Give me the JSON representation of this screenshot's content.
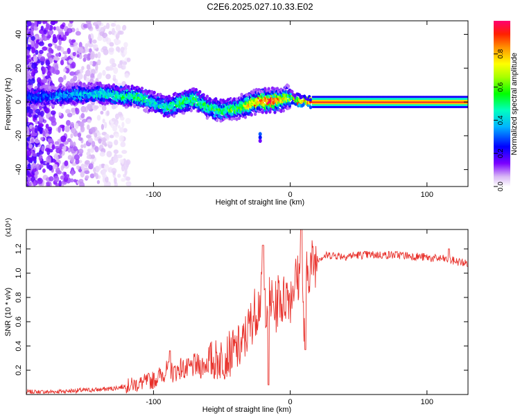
{
  "title": "C2E6.2025.027.10.33.E02",
  "colors": {
    "snr_line": "#e8302a",
    "axis": "#000000"
  },
  "chart_data": [
    {
      "type": "heatmap",
      "xlabel": "Height of straight line (km)",
      "ylabel": "Frequency (Hz)",
      "xlim": [
        -193,
        130
      ],
      "ylim": [
        -50,
        48
      ],
      "x_ticks": [
        "-100",
        "0",
        "100"
      ],
      "x_tick_values": [
        -100,
        0,
        100
      ],
      "y_ticks": [
        "-40",
        "-20",
        "0",
        "20",
        "40"
      ],
      "y_tick_values": [
        -40,
        -20,
        0,
        20,
        40
      ],
      "colorbar": {
        "label": "Normalized spectral amplitude",
        "range": [
          0,
          1
        ],
        "ticks": [
          "0.0",
          "0.2",
          "0.4",
          "0.6",
          "0.8"
        ],
        "tick_values": [
          0.0,
          0.2,
          0.4,
          0.6,
          0.8
        ],
        "colormap": "rainbow"
      },
      "ridge": {
        "x": [
          -185,
          -170,
          -155,
          -140,
          -125,
          -110,
          -100,
          -90,
          -80,
          -70,
          -60,
          -50,
          -40,
          -30,
          -20,
          -10,
          0,
          5,
          10,
          20,
          40,
          80,
          130
        ],
        "frequency_hz": [
          3,
          4,
          5,
          5,
          4,
          3,
          0,
          -3,
          0,
          2,
          -3,
          -5,
          -4,
          -1,
          1,
          1,
          3,
          1,
          0,
          0,
          0,
          0,
          0
        ],
        "peak_amplitude": [
          0.3,
          0.35,
          0.4,
          0.45,
          0.5,
          0.55,
          0.45,
          0.5,
          0.55,
          0.55,
          0.55,
          0.55,
          0.6,
          0.8,
          0.9,
          0.95,
          0.6,
          0.85,
          0.95,
          0.95,
          0.95,
          0.95,
          0.95
        ]
      }
    },
    {
      "type": "line",
      "xlabel": "Height of straight line (km)",
      "ylabel": "SNR (10 * v/v)",
      "y_scale_label": "(x10⁴)",
      "xlim": [
        -193,
        130
      ],
      "ylim": [
        0,
        1.36
      ],
      "x_ticks": [
        "-100",
        "0",
        "100"
      ],
      "x_tick_values": [
        -100,
        0,
        100
      ],
      "y_ticks": [
        "0.2",
        "0.4",
        "0.6",
        "0.8",
        "1.0",
        "1.2"
      ],
      "y_tick_values": [
        0.2,
        0.4,
        0.6,
        0.8,
        1.0,
        1.2
      ],
      "series": [
        {
          "name": "SNR",
          "x": [
            -193,
            -180,
            -160,
            -140,
            -130,
            -120,
            -110,
            -100,
            -95,
            -90,
            -85,
            -80,
            -75,
            -70,
            -65,
            -60,
            -55,
            -50,
            -45,
            -40,
            -35,
            -32,
            -30,
            -28,
            -26,
            -24,
            -22,
            -20,
            -18,
            -16,
            -14,
            -12,
            -10,
            -8,
            -6,
            -4,
            -2,
            0,
            2,
            4,
            6,
            8,
            10,
            12,
            14,
            16,
            18,
            20,
            22,
            25,
            30,
            40,
            50,
            60,
            70,
            80,
            90,
            100,
            105,
            110,
            115,
            120,
            125,
            130
          ],
          "values": [
            0.02,
            0.02,
            0.03,
            0.04,
            0.05,
            0.07,
            0.09,
            0.12,
            0.16,
            0.2,
            0.18,
            0.22,
            0.2,
            0.24,
            0.23,
            0.27,
            0.28,
            0.3,
            0.33,
            0.36,
            0.4,
            0.5,
            0.55,
            0.62,
            0.68,
            0.72,
            0.78,
            0.82,
            0.76,
            0.8,
            0.78,
            0.7,
            0.72,
            0.85,
            0.75,
            0.8,
            0.85,
            0.8,
            0.9,
            0.95,
            0.95,
            1.0,
            0.55,
            0.98,
            1.05,
            1.08,
            1.1,
            1.12,
            1.13,
            1.14,
            1.15,
            1.14,
            1.15,
            1.15,
            1.15,
            1.15,
            1.14,
            1.13,
            1.12,
            1.12,
            1.11,
            1.1,
            1.09,
            1.08
          ]
        }
      ],
      "spikes": [
        {
          "x": -88,
          "value": 0.36
        },
        {
          "x": -20,
          "value": 1.23
        },
        {
          "x": -16,
          "value": 0.08
        },
        {
          "x": 8,
          "value": 1.38
        },
        {
          "x": 11,
          "value": 0.37
        },
        {
          "x": 116,
          "value": 1.2
        }
      ]
    }
  ]
}
